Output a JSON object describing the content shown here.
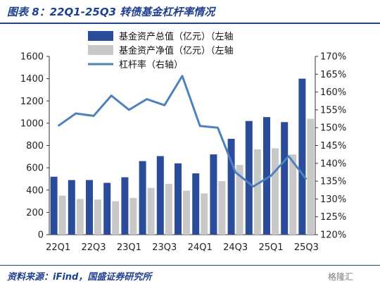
{
  "header": {
    "title": "图表 8：22Q1-25Q3 转债基金杠杆率情况"
  },
  "footer": {
    "source": "资料来源：iFind，国盛证券研究所",
    "watermark": "格隆汇"
  },
  "colors": {
    "total_assets": "#2b4c9a",
    "net_assets": "#c8c8c8",
    "leverage": "#4f81bd"
  },
  "chart_data": {
    "type": "bar",
    "categories": [
      "22Q1",
      "22Q2",
      "22Q3",
      "22Q4",
      "23Q1",
      "23Q2",
      "23Q3",
      "23Q4",
      "24Q1",
      "24Q2",
      "24Q3",
      "24Q4",
      "25Q1",
      "25Q2",
      "25Q3"
    ],
    "x_tick_labels": [
      "22Q1",
      "",
      "22Q3",
      "",
      "23Q1",
      "",
      "23Q3",
      "",
      "24Q1",
      "",
      "24Q3",
      "",
      "25Q1",
      "",
      "25Q3"
    ],
    "series": [
      {
        "name": "基金资产总值（亿元）（左轴",
        "type": "bar",
        "axis": "left",
        "values": [
          520,
          490,
          490,
          465,
          515,
          660,
          705,
          640,
          550,
          720,
          860,
          1020,
          1055,
          1010,
          1400
        ]
      },
      {
        "name": "基金资产净值（亿元）（左轴",
        "type": "bar",
        "axis": "left",
        "values": [
          350,
          320,
          315,
          300,
          330,
          420,
          455,
          395,
          370,
          480,
          625,
          765,
          775,
          720,
          1040
        ]
      },
      {
        "name": "杠杆率（右轴）",
        "type": "line",
        "axis": "right",
        "values": [
          150.5,
          154.0,
          153.3,
          159.0,
          155.0,
          158.0,
          156.3,
          164.5,
          150.5,
          150.0,
          137.5,
          133.5,
          136.5,
          142.0,
          135.5
        ]
      }
    ],
    "y_left": {
      "min": 0,
      "max": 1600,
      "ticks": [
        "0",
        "200",
        "400",
        "600",
        "800",
        "1000",
        "1200",
        "1400",
        "1600"
      ]
    },
    "y_right": {
      "min": 120,
      "max": 170,
      "ticks": [
        "120%",
        "125%",
        "130%",
        "135%",
        "140%",
        "145%",
        "150%",
        "155%",
        "160%",
        "165%",
        "170%"
      ]
    },
    "grid": false,
    "legend": "top"
  }
}
